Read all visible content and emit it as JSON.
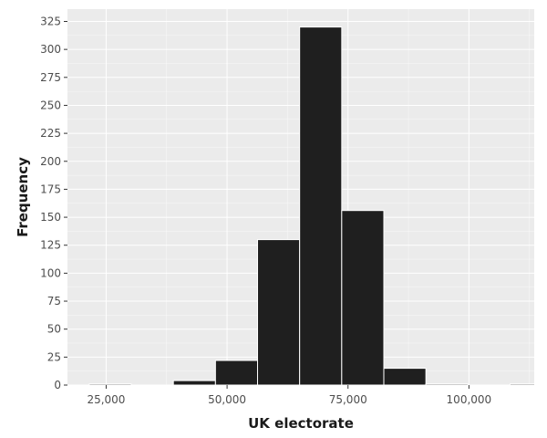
{
  "chart_data": {
    "type": "bar",
    "subtype": "histogram",
    "xlabel": "UK electorate",
    "ylabel": "Frequency",
    "xlim": [
      17000,
      113500
    ],
    "ylim": [
      0,
      336
    ],
    "x_ticks": [
      25000,
      50000,
      75000,
      100000
    ],
    "x_tick_labels": [
      "25,000",
      "50,000",
      "75,000",
      "100,000"
    ],
    "y_ticks": [
      0,
      25,
      50,
      75,
      100,
      125,
      150,
      175,
      200,
      225,
      250,
      275,
      300,
      325
    ],
    "y_tick_labels": [
      "0",
      "25",
      "50",
      "75",
      "100",
      "125",
      "150",
      "175",
      "200",
      "225",
      "250",
      "275",
      "300",
      "325"
    ],
    "bins": [
      {
        "x0": 21500,
        "x1": 30200,
        "count": 1
      },
      {
        "x0": 30200,
        "x1": 38900,
        "count": 0
      },
      {
        "x0": 38900,
        "x1": 47600,
        "count": 4
      },
      {
        "x0": 47600,
        "x1": 56300,
        "count": 22
      },
      {
        "x0": 56300,
        "x1": 65000,
        "count": 130
      },
      {
        "x0": 65000,
        "x1": 73700,
        "count": 320
      },
      {
        "x0": 73700,
        "x1": 82400,
        "count": 156
      },
      {
        "x0": 82400,
        "x1": 91100,
        "count": 15
      },
      {
        "x0": 91100,
        "x1": 99800,
        "count": 1
      },
      {
        "x0": 99800,
        "x1": 108500,
        "count": 0
      },
      {
        "x0": 108500,
        "x1": 117200,
        "count": 1
      }
    ],
    "grid": true,
    "colors": {
      "panel_background": "#ebebeb",
      "grid_major": "#ffffff",
      "bar_fill": "#1f1f1f",
      "bar_outline": "#ffffff"
    }
  }
}
